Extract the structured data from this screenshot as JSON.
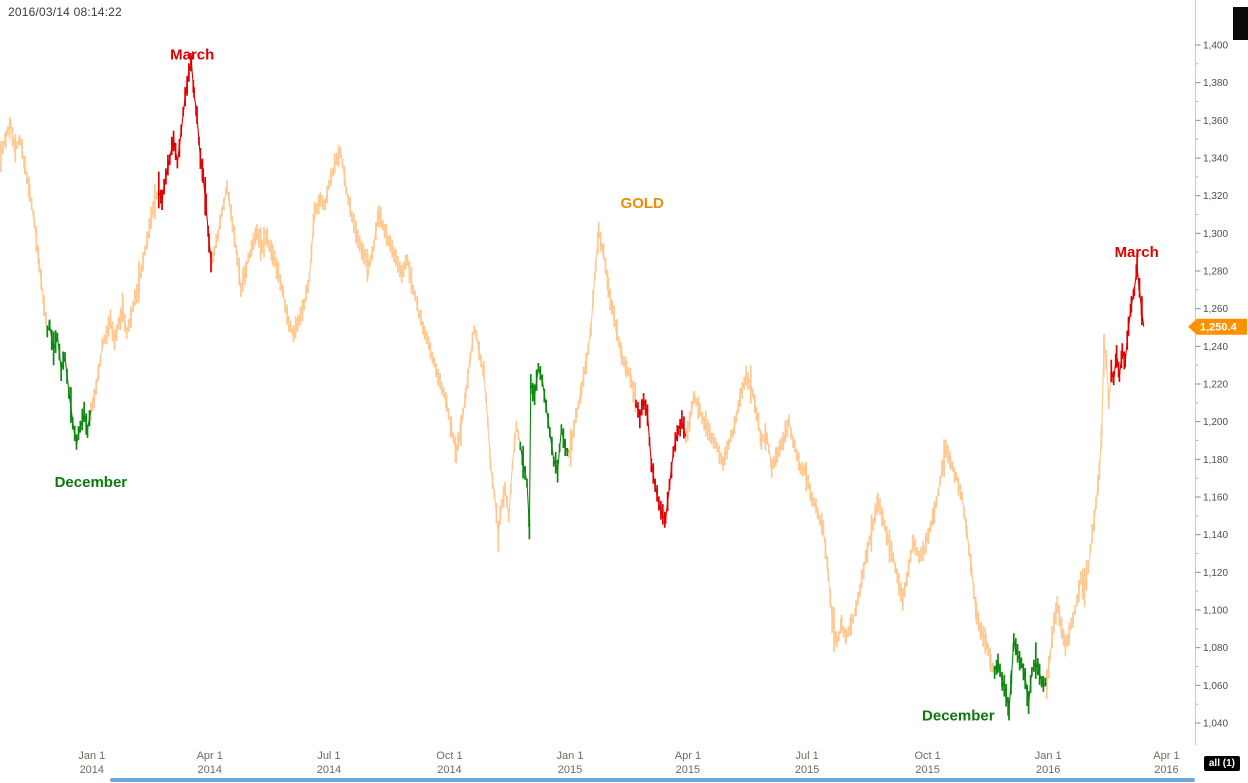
{
  "header": {
    "timestamp": "2016/03/14 08:14:22"
  },
  "controls": {
    "range_badge": "all (1)"
  },
  "price_tag": {
    "label": "1,250.4",
    "color": "#FF9100"
  },
  "chart_data": {
    "type": "line",
    "title": "GOLD",
    "grid": false,
    "legend_position": "none",
    "current_price": 1250.4,
    "series_colors": {
      "continuous": "#FFC890",
      "december": "#0C860C",
      "march": "#DF0000"
    },
    "segment_legend": {
      "0": "GOLD continuous (orange)",
      "1": "December contract (green)",
      "2": "March contract (red)"
    },
    "x_axis": {
      "unit": "decimal_year",
      "range": [
        2013.808,
        2016.307
      ],
      "ticks": [
        {
          "t": 2014.0,
          "line1": "Jan 1",
          "line2": "2014"
        },
        {
          "t": 2014.2466,
          "line1": "Apr 1",
          "line2": "2014"
        },
        {
          "t": 2014.4959,
          "line1": "Jul 1",
          "line2": "2014"
        },
        {
          "t": 2014.7479,
          "line1": "Oct 1",
          "line2": "2014"
        },
        {
          "t": 2015.0,
          "line1": "Jan 1",
          "line2": "2015"
        },
        {
          "t": 2015.2466,
          "line1": "Apr 1",
          "line2": "2015"
        },
        {
          "t": 2015.4959,
          "line1": "Jul 1",
          "line2": "2015"
        },
        {
          "t": 2015.7479,
          "line1": "Oct 1",
          "line2": "2015"
        },
        {
          "t": 2016.0,
          "line1": "Jan 1",
          "line2": "2016"
        },
        {
          "t": 2016.2473,
          "line1": "Apr 1",
          "line2": "2016"
        }
      ]
    },
    "y_axis": {
      "range": [
        1040,
        1400
      ],
      "tick_step": 20,
      "ticks": [
        {
          "v": 1400,
          "label": "1,400"
        },
        {
          "v": 1380,
          "label": "1,380"
        },
        {
          "v": 1360,
          "label": "1,360"
        },
        {
          "v": 1340,
          "label": "1,340"
        },
        {
          "v": 1320,
          "label": "1,320"
        },
        {
          "v": 1300,
          "label": "1,300"
        },
        {
          "v": 1280,
          "label": "1,280"
        },
        {
          "v": 1260,
          "label": "1,260"
        },
        {
          "v": 1240,
          "label": "1,240"
        },
        {
          "v": 1220,
          "label": "1,220"
        },
        {
          "v": 1200,
          "label": "1,200"
        },
        {
          "v": 1180,
          "label": "1,180"
        },
        {
          "v": 1160,
          "label": "1,160"
        },
        {
          "v": 1140,
          "label": "1,140"
        },
        {
          "v": 1120,
          "label": "1,120"
        },
        {
          "v": 1100,
          "label": "1,100"
        },
        {
          "v": 1080,
          "label": "1,080"
        },
        {
          "v": 1060,
          "label": "1,060"
        },
        {
          "v": 1040,
          "label": "1,040"
        }
      ]
    },
    "annotations": [
      {
        "id": "march-2014",
        "text": "March",
        "t": 2014.21,
        "price": 1395,
        "color": "#DD0000"
      },
      {
        "id": "gold-title",
        "text": "GOLD",
        "t": 2015.151,
        "price": 1316,
        "color": "#F08C00"
      },
      {
        "id": "march-2016",
        "text": "March",
        "t": 2016.185,
        "price": 1290,
        "color": "#DD0000"
      },
      {
        "id": "december-2013",
        "text": "December",
        "t": 2013.998,
        "price": 1168,
        "color": "#0B7A0B"
      },
      {
        "id": "december-2015",
        "text": "December",
        "t": 2015.812,
        "price": 1044,
        "color": "#0B7A0B"
      }
    ],
    "points": [
      [
        2013.81,
        1342,
        0
      ],
      [
        2013.82,
        1351,
        0
      ],
      [
        2013.83,
        1358,
        0
      ],
      [
        2013.84,
        1345,
        0
      ],
      [
        2013.85,
        1350,
        0
      ],
      [
        2013.86,
        1336,
        0
      ],
      [
        2013.87,
        1322,
        0
      ],
      [
        2013.88,
        1306,
        0
      ],
      [
        2013.89,
        1284,
        0
      ],
      [
        2013.9,
        1262,
        0
      ],
      [
        2013.907,
        1248,
        0
      ],
      [
        2013.912,
        1251,
        1
      ],
      [
        2013.92,
        1238,
        1
      ],
      [
        2013.928,
        1245,
        1
      ],
      [
        2013.936,
        1228,
        1
      ],
      [
        2013.944,
        1234,
        1
      ],
      [
        2013.952,
        1216,
        1
      ],
      [
        2013.96,
        1200,
        1
      ],
      [
        2013.968,
        1188,
        1
      ],
      [
        2013.976,
        1197,
        1
      ],
      [
        2013.984,
        1204,
        1
      ],
      [
        2013.991,
        1196,
        1
      ],
      [
        2013.998,
        1206,
        1
      ],
      [
        2014.005,
        1212,
        0
      ],
      [
        2014.014,
        1226,
        0
      ],
      [
        2014.022,
        1240,
        0
      ],
      [
        2014.031,
        1246,
        0
      ],
      [
        2014.039,
        1253,
        0
      ],
      [
        2014.048,
        1243,
        0
      ],
      [
        2014.056,
        1252,
        0
      ],
      [
        2014.065,
        1260,
        0
      ],
      [
        2014.073,
        1248,
        0
      ],
      [
        2014.082,
        1256,
        0
      ],
      [
        2014.09,
        1265,
        0
      ],
      [
        2014.099,
        1274,
        0
      ],
      [
        2014.107,
        1286,
        0
      ],
      [
        2014.116,
        1296,
        0
      ],
      [
        2014.124,
        1308,
        0
      ],
      [
        2014.132,
        1318,
        0
      ],
      [
        2014.14,
        1322,
        0
      ],
      [
        2014.147,
        1318,
        2
      ],
      [
        2014.155,
        1330,
        2
      ],
      [
        2014.163,
        1340,
        2
      ],
      [
        2014.171,
        1350,
        2
      ],
      [
        2014.179,
        1338,
        2
      ],
      [
        2014.187,
        1354,
        2
      ],
      [
        2014.195,
        1372,
        2
      ],
      [
        2014.203,
        1386,
        2
      ],
      [
        2014.208,
        1391,
        2
      ],
      [
        2014.214,
        1374,
        2
      ],
      [
        2014.22,
        1362,
        2
      ],
      [
        2014.227,
        1340,
        2
      ],
      [
        2014.233,
        1330,
        2
      ],
      [
        2014.239,
        1314,
        2
      ],
      [
        2014.245,
        1296,
        2
      ],
      [
        2014.25,
        1284,
        2
      ],
      [
        2014.256,
        1290,
        0
      ],
      [
        2014.264,
        1300,
        0
      ],
      [
        2014.272,
        1312,
        0
      ],
      [
        2014.283,
        1324,
        0
      ],
      [
        2014.294,
        1306,
        0
      ],
      [
        2014.304,
        1288,
        0
      ],
      [
        2014.312,
        1270,
        0
      ],
      [
        2014.323,
        1282,
        0
      ],
      [
        2014.334,
        1292,
        0
      ],
      [
        2014.345,
        1300,
        0
      ],
      [
        2014.356,
        1292,
        0
      ],
      [
        2014.367,
        1298,
        0
      ],
      [
        2014.378,
        1288,
        0
      ],
      [
        2014.39,
        1280,
        0
      ],
      [
        2014.4,
        1268,
        0
      ],
      [
        2014.412,
        1252,
        0
      ],
      [
        2014.422,
        1246,
        0
      ],
      [
        2014.432,
        1254,
        0
      ],
      [
        2014.444,
        1262,
        0
      ],
      [
        2014.455,
        1276,
        0
      ],
      [
        2014.466,
        1312,
        0
      ],
      [
        2014.478,
        1318,
        0
      ],
      [
        2014.488,
        1316,
        0
      ],
      [
        2014.496,
        1326,
        0
      ],
      [
        2014.508,
        1336,
        0
      ],
      [
        2014.52,
        1344,
        0
      ],
      [
        2014.532,
        1324,
        0
      ],
      [
        2014.544,
        1308,
        0
      ],
      [
        2014.556,
        1298,
        0
      ],
      [
        2014.568,
        1290,
        0
      ],
      [
        2014.578,
        1282,
        0
      ],
      [
        2014.59,
        1294,
        0
      ],
      [
        2014.6,
        1310,
        0
      ],
      [
        2014.612,
        1302,
        0
      ],
      [
        2014.624,
        1294,
        0
      ],
      [
        2014.636,
        1286,
        0
      ],
      [
        2014.648,
        1278,
        0
      ],
      [
        2014.66,
        1286,
        0
      ],
      [
        2014.672,
        1270,
        0
      ],
      [
        2014.684,
        1258,
        0
      ],
      [
        2014.696,
        1248,
        0
      ],
      [
        2014.708,
        1238,
        0
      ],
      [
        2014.72,
        1228,
        0
      ],
      [
        2014.732,
        1218,
        0
      ],
      [
        2014.742,
        1210,
        0
      ],
      [
        2014.752,
        1196,
        0
      ],
      [
        2014.762,
        1184,
        0
      ],
      [
        2014.772,
        1196,
        0
      ],
      [
        2014.782,
        1215,
        0
      ],
      [
        2014.792,
        1235,
        0
      ],
      [
        2014.8,
        1250,
        0
      ],
      [
        2014.81,
        1238,
        0
      ],
      [
        2014.82,
        1226,
        0
      ],
      [
        2014.828,
        1200,
        0
      ],
      [
        2014.834,
        1176,
        0
      ],
      [
        2014.842,
        1162,
        0
      ],
      [
        2014.85,
        1140,
        0
      ],
      [
        2014.857,
        1156,
        0
      ],
      [
        2014.864,
        1164,
        0
      ],
      [
        2014.872,
        1150,
        0
      ],
      [
        2014.88,
        1178,
        0
      ],
      [
        2014.888,
        1198,
        0
      ],
      [
        2014.896,
        1188,
        0
      ],
      [
        2014.902,
        1178,
        1
      ],
      [
        2014.91,
        1168,
        1
      ],
      [
        2014.915,
        1144,
        1
      ],
      [
        2014.918,
        1220,
        1
      ],
      [
        2014.926,
        1214,
        1
      ],
      [
        2014.934,
        1228,
        1
      ],
      [
        2014.942,
        1222,
        1
      ],
      [
        2014.95,
        1208,
        1
      ],
      [
        2014.958,
        1194,
        1
      ],
      [
        2014.966,
        1180,
        1
      ],
      [
        2014.974,
        1174,
        1
      ],
      [
        2014.982,
        1196,
        1
      ],
      [
        2014.99,
        1186,
        1
      ],
      [
        2014.997,
        1184,
        1
      ],
      [
        2015.004,
        1190,
        0
      ],
      [
        2015.014,
        1205,
        0
      ],
      [
        2015.024,
        1218,
        0
      ],
      [
        2015.034,
        1232,
        0
      ],
      [
        2015.044,
        1250,
        0
      ],
      [
        2015.054,
        1284,
        0
      ],
      [
        2015.06,
        1301,
        0
      ],
      [
        2015.07,
        1290,
        0
      ],
      [
        2015.08,
        1272,
        0
      ],
      [
        2015.088,
        1260,
        0
      ],
      [
        2015.098,
        1248,
        0
      ],
      [
        2015.108,
        1236,
        0
      ],
      [
        2015.118,
        1228,
        0
      ],
      [
        2015.128,
        1222,
        0
      ],
      [
        2015.138,
        1210,
        0
      ],
      [
        2015.146,
        1202,
        2
      ],
      [
        2015.154,
        1212,
        2
      ],
      [
        2015.162,
        1204,
        2
      ],
      [
        2015.17,
        1178,
        2
      ],
      [
        2015.178,
        1166,
        2
      ],
      [
        2015.186,
        1156,
        2
      ],
      [
        2015.194,
        1150,
        2
      ],
      [
        2015.2,
        1148,
        2
      ],
      [
        2015.208,
        1166,
        2
      ],
      [
        2015.216,
        1184,
        2
      ],
      [
        2015.226,
        1196,
        2
      ],
      [
        2015.234,
        1200,
        2
      ],
      [
        2015.242,
        1192,
        2
      ],
      [
        2015.25,
        1200,
        0
      ],
      [
        2015.26,
        1214,
        0
      ],
      [
        2015.272,
        1206,
        0
      ],
      [
        2015.284,
        1198,
        0
      ],
      [
        2015.296,
        1192,
        0
      ],
      [
        2015.308,
        1186,
        0
      ],
      [
        2015.32,
        1178,
        0
      ],
      [
        2015.332,
        1188,
        0
      ],
      [
        2015.344,
        1198,
        0
      ],
      [
        2015.356,
        1214,
        0
      ],
      [
        2015.368,
        1224,
        0
      ],
      [
        2015.378,
        1220,
        0
      ],
      [
        2015.39,
        1205,
        0
      ],
      [
        2015.4,
        1190,
        0
      ],
      [
        2015.412,
        1192,
        0
      ],
      [
        2015.422,
        1176,
        0
      ],
      [
        2015.434,
        1182,
        0
      ],
      [
        2015.446,
        1190,
        0
      ],
      [
        2015.458,
        1200,
        0
      ],
      [
        2015.47,
        1186,
        0
      ],
      [
        2015.482,
        1176,
        0
      ],
      [
        2015.494,
        1172,
        0
      ],
      [
        2015.506,
        1160,
        0
      ],
      [
        2015.518,
        1152,
        0
      ],
      [
        2015.53,
        1142,
        0
      ],
      [
        2015.54,
        1120,
        0
      ],
      [
        2015.548,
        1096,
        0
      ],
      [
        2015.558,
        1082,
        0
      ],
      [
        2015.568,
        1092,
        0
      ],
      [
        2015.578,
        1086,
        0
      ],
      [
        2015.588,
        1092,
        0
      ],
      [
        2015.598,
        1100,
        0
      ],
      [
        2015.61,
        1116,
        0
      ],
      [
        2015.622,
        1132,
        0
      ],
      [
        2015.634,
        1146,
        0
      ],
      [
        2015.644,
        1158,
        0
      ],
      [
        2015.654,
        1148,
        0
      ],
      [
        2015.664,
        1138,
        0
      ],
      [
        2015.676,
        1128,
        0
      ],
      [
        2015.688,
        1114,
        0
      ],
      [
        2015.696,
        1106,
        0
      ],
      [
        2015.708,
        1122,
        0
      ],
      [
        2015.718,
        1136,
        0
      ],
      [
        2015.73,
        1128,
        0
      ],
      [
        2015.74,
        1132,
        0
      ],
      [
        2015.75,
        1140,
        0
      ],
      [
        2015.762,
        1152,
        0
      ],
      [
        2015.774,
        1168,
        0
      ],
      [
        2015.786,
        1186,
        0
      ],
      [
        2015.796,
        1178,
        0
      ],
      [
        2015.808,
        1170,
        0
      ],
      [
        2015.82,
        1160,
        0
      ],
      [
        2015.83,
        1142,
        0
      ],
      [
        2015.84,
        1120,
        0
      ],
      [
        2015.85,
        1098,
        0
      ],
      [
        2015.86,
        1088,
        0
      ],
      [
        2015.87,
        1084,
        0
      ],
      [
        2015.88,
        1072,
        0
      ],
      [
        2015.888,
        1068,
        0
      ],
      [
        2015.895,
        1072,
        1
      ],
      [
        2015.904,
        1062,
        1
      ],
      [
        2015.912,
        1056,
        1
      ],
      [
        2015.918,
        1047,
        1
      ],
      [
        2015.923,
        1064,
        1
      ],
      [
        2015.928,
        1084,
        1
      ],
      [
        2015.936,
        1076,
        1
      ],
      [
        2015.944,
        1072,
        1
      ],
      [
        2015.952,
        1064,
        1
      ],
      [
        2015.959,
        1050,
        1
      ],
      [
        2015.966,
        1068,
        1
      ],
      [
        2015.974,
        1072,
        1
      ],
      [
        2015.982,
        1066,
        1
      ],
      [
        2015.99,
        1060,
        1
      ],
      [
        2015.997,
        1061,
        1
      ],
      [
        2016.004,
        1076,
        0
      ],
      [
        2016.012,
        1092,
        0
      ],
      [
        2016.019,
        1104,
        0
      ],
      [
        2016.028,
        1090,
        0
      ],
      [
        2016.036,
        1080,
        0
      ],
      [
        2016.044,
        1088,
        0
      ],
      [
        2016.052,
        1096,
        0
      ],
      [
        2016.06,
        1104,
        0
      ],
      [
        2016.068,
        1116,
        0
      ],
      [
        2016.076,
        1112,
        0
      ],
      [
        2016.084,
        1122,
        0
      ],
      [
        2016.092,
        1140,
        0
      ],
      [
        2016.1,
        1156,
        0
      ],
      [
        2016.107,
        1174,
        0
      ],
      [
        2016.112,
        1196,
        0
      ],
      [
        2016.117,
        1242,
        0
      ],
      [
        2016.122,
        1232,
        0
      ],
      [
        2016.127,
        1210,
        0
      ],
      [
        2016.132,
        1226,
        0
      ],
      [
        2016.137,
        1222,
        2
      ],
      [
        2016.143,
        1236,
        2
      ],
      [
        2016.149,
        1224,
        2
      ],
      [
        2016.155,
        1238,
        2
      ],
      [
        2016.161,
        1232,
        2
      ],
      [
        2016.168,
        1250,
        2
      ],
      [
        2016.174,
        1262,
        2
      ],
      [
        2016.18,
        1270,
        2
      ],
      [
        2016.186,
        1282,
        2
      ],
      [
        2016.191,
        1270,
        2
      ],
      [
        2016.196,
        1258,
        2
      ],
      [
        2016.2,
        1250.4,
        2
      ]
    ]
  }
}
